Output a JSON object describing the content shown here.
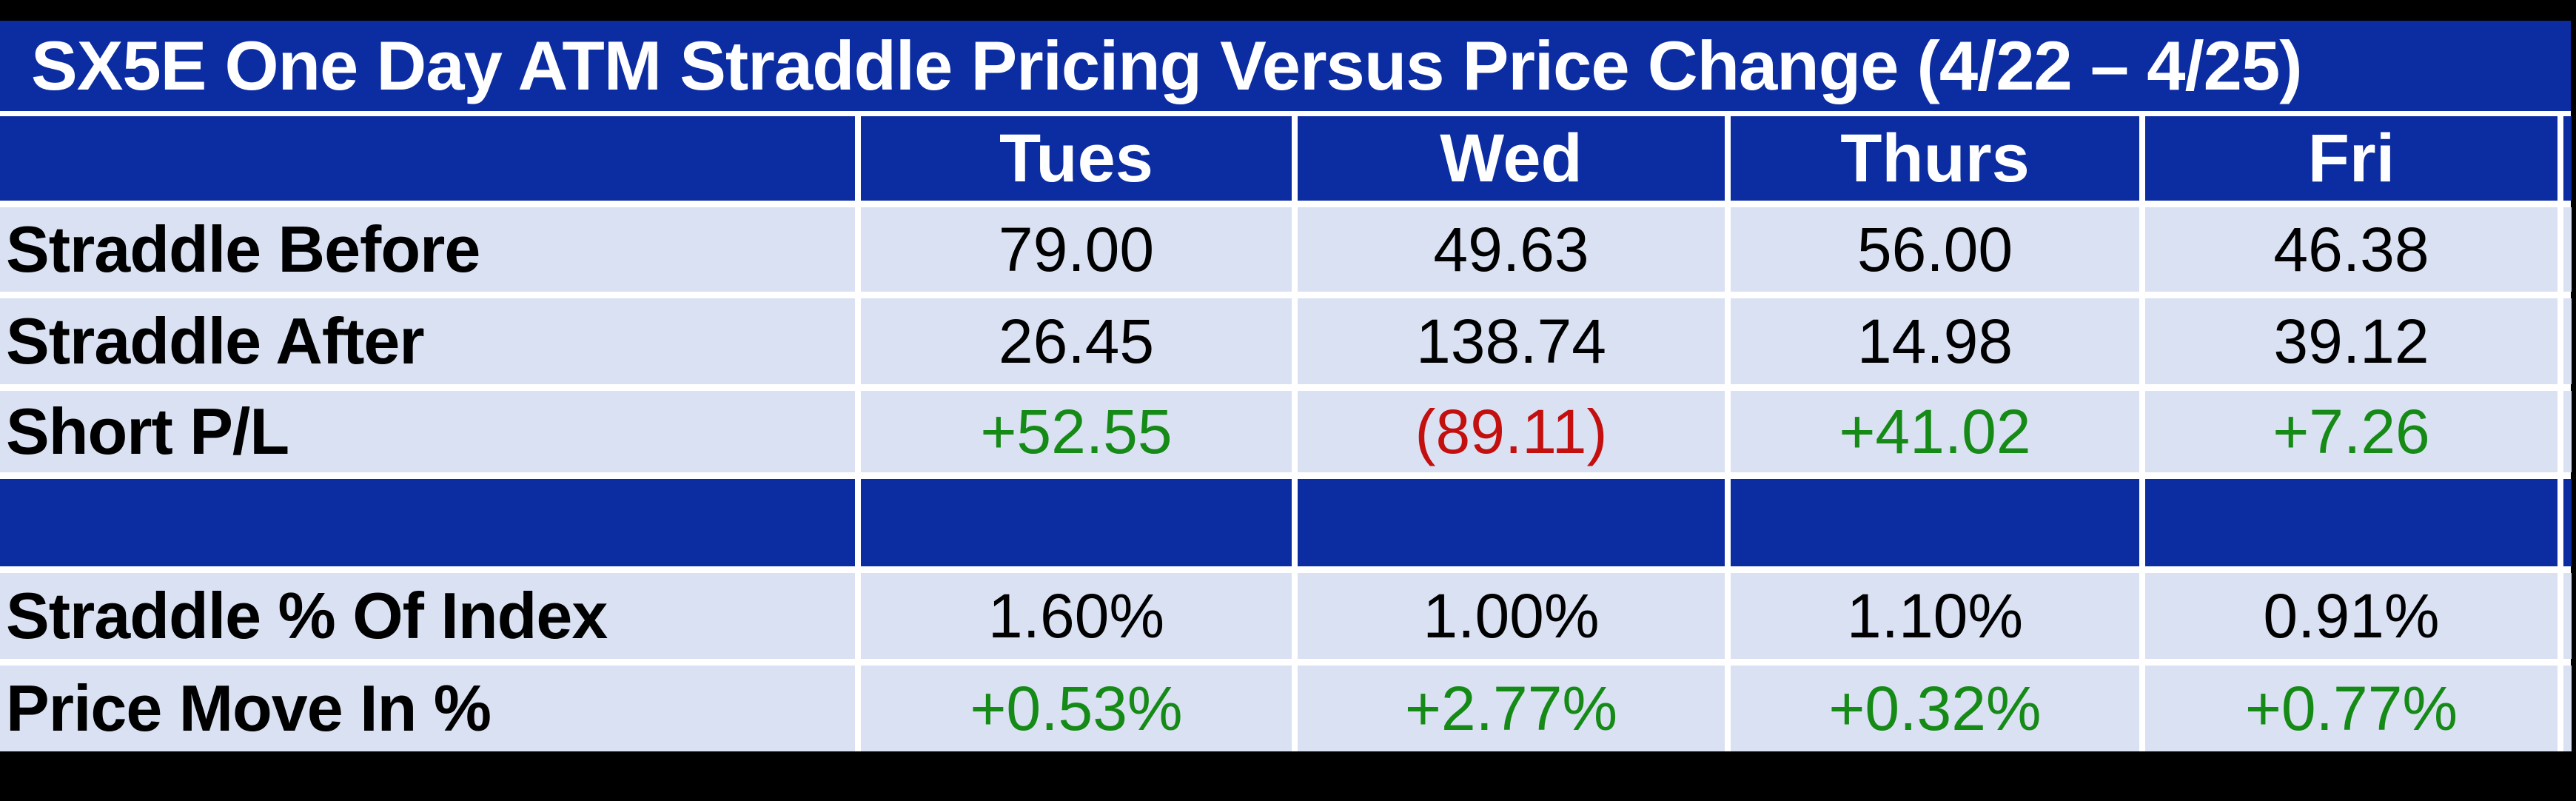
{
  "table": {
    "title": "SX5E One Day ATM Straddle Pricing Versus Price Change (4/22 – 4/25)",
    "column_headers": [
      "Tues",
      "Wed",
      "Thurs",
      "Fri"
    ],
    "rows": [
      {
        "label": "Straddle Before",
        "values": [
          {
            "text": "79.00",
            "color": "black"
          },
          {
            "text": "49.63",
            "color": "black"
          },
          {
            "text": "56.00",
            "color": "black"
          },
          {
            "text": "46.38",
            "color": "black"
          }
        ]
      },
      {
        "label": "Straddle After",
        "values": [
          {
            "text": "26.45",
            "color": "black"
          },
          {
            "text": "138.74",
            "color": "black"
          },
          {
            "text": "14.98",
            "color": "black"
          },
          {
            "text": "39.12",
            "color": "black"
          }
        ]
      },
      {
        "label": "Short P/L",
        "values": [
          {
            "text": "+52.55",
            "color": "green"
          },
          {
            "text": "(89.11)",
            "color": "red"
          },
          {
            "text": "+41.02",
            "color": "green"
          },
          {
            "text": "+7.26",
            "color": "green"
          }
        ]
      },
      {
        "label": "Straddle % Of Index",
        "values": [
          {
            "text": "1.60%",
            "color": "black"
          },
          {
            "text": "1.00%",
            "color": "black"
          },
          {
            "text": "1.10%",
            "color": "black"
          },
          {
            "text": "0.91%",
            "color": "black"
          }
        ]
      },
      {
        "label": "Price Move In %",
        "values": [
          {
            "text": "+0.53%",
            "color": "green"
          },
          {
            "text": "+2.77%",
            "color": "green"
          },
          {
            "text": "+0.32%",
            "color": "green"
          },
          {
            "text": "+0.77%",
            "color": "green"
          }
        ]
      }
    ]
  },
  "colors": {
    "header_blue": "#0c2da2",
    "row_background": "#d9e1f2",
    "positive_green": "#168a16",
    "negative_red": "#c40f0f",
    "grid_line_white": "#ffffff",
    "page_edge_black": "#000000"
  },
  "chart_data": {
    "type": "table",
    "title": "SX5E One Day ATM Straddle Pricing Versus Price Change (4/22 – 4/25)",
    "categories": [
      "Tues",
      "Wed",
      "Thurs",
      "Fri"
    ],
    "series": [
      {
        "name": "Straddle Before",
        "values": [
          79.0,
          49.63,
          56.0,
          46.38
        ]
      },
      {
        "name": "Straddle After",
        "values": [
          26.45,
          138.74,
          14.98,
          39.12
        ]
      },
      {
        "name": "Short P/L",
        "values": [
          52.55,
          -89.11,
          41.02,
          7.26
        ]
      },
      {
        "name": "Straddle % Of Index",
        "values": [
          1.6,
          1.0,
          1.1,
          0.91
        ],
        "unit": "%"
      },
      {
        "name": "Price Move In %",
        "values": [
          0.53,
          2.77,
          0.32,
          0.77
        ],
        "unit": "%"
      }
    ],
    "layout_hints": {
      "positive_values_green": true,
      "negative_values_red_parentheses": true,
      "blank_blue_spacer_row_between": [
        "Short P/L",
        "Straddle % Of Index"
      ]
    }
  }
}
